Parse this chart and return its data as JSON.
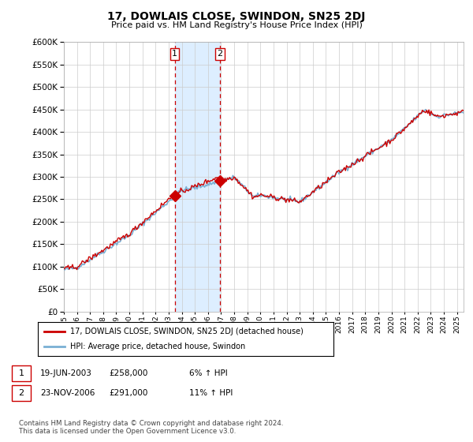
{
  "title": "17, DOWLAIS CLOSE, SWINDON, SN25 2DJ",
  "subtitle": "Price paid vs. HM Land Registry's House Price Index (HPI)",
  "ylim": [
    0,
    600000
  ],
  "yticks": [
    0,
    50000,
    100000,
    150000,
    200000,
    250000,
    300000,
    350000,
    400000,
    450000,
    500000,
    550000,
    600000
  ],
  "xlim_start": 1995.0,
  "xlim_end": 2025.5,
  "sale1_x": 2003.46,
  "sale1_y": 258000,
  "sale1_label": "1",
  "sale1_date": "19-JUN-2003",
  "sale1_price": "£258,000",
  "sale1_hpi": "6% ↑ HPI",
  "sale2_x": 2006.9,
  "sale2_y": 291000,
  "sale2_label": "2",
  "sale2_date": "23-NOV-2006",
  "sale2_price": "£291,000",
  "sale2_hpi": "11% ↑ HPI",
  "red_line_color": "#cc0000",
  "blue_line_color": "#7ab0d4",
  "shade_color": "#ddeeff",
  "grid_color": "#cccccc",
  "background_color": "#ffffff",
  "footnote": "Contains HM Land Registry data © Crown copyright and database right 2024.\nThis data is licensed under the Open Government Licence v3.0.",
  "legend_label1": "17, DOWLAIS CLOSE, SWINDON, SN25 2DJ (detached house)",
  "legend_label2": "HPI: Average price, detached house, Swindon"
}
